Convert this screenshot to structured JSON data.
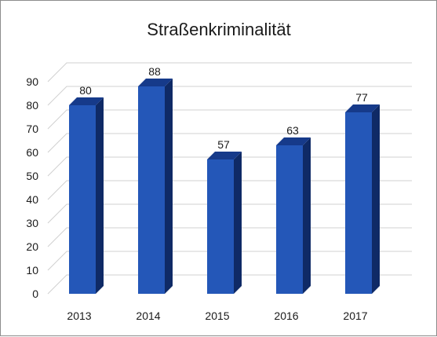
{
  "chart_data": {
    "type": "bar",
    "title": "Straßenkriminalität",
    "categories": [
      "2013",
      "2014",
      "2015",
      "2016",
      "2017"
    ],
    "values": [
      80,
      88,
      57,
      63,
      77
    ],
    "ylim": [
      0,
      90
    ],
    "yticks": [
      "0",
      "10",
      "20",
      "30",
      "40",
      "50",
      "60",
      "70",
      "80",
      "90"
    ],
    "grid": true,
    "legend": "none",
    "colors": {
      "bar_front": "#2457b8",
      "bar_side": "#0f2a66",
      "bar_top": "#163a8a",
      "grid": "#d0d0d0"
    }
  }
}
